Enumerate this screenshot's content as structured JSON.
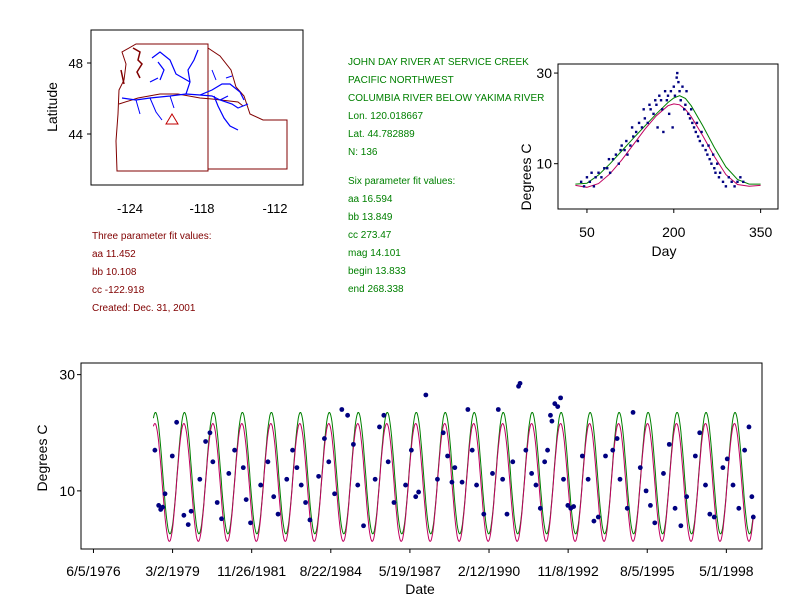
{
  "colors": {
    "axis": "#000000",
    "map_outline": "#800000",
    "rivers": "#0000ff",
    "points": "#000080",
    "fit_six": "#008000",
    "fit_three": "#c00060",
    "station_marker": "#c00000"
  },
  "map": {
    "ylabel": "Latitude",
    "yticks": [
      "48",
      "44"
    ],
    "xticks": [
      "-124",
      "-118",
      "-112"
    ],
    "station_marker_icon": "triangle-icon"
  },
  "station": {
    "name": "JOHN DAY RIVER AT SERVICE CREEK",
    "region": "PACIFIC NORTHWEST",
    "basin": "COLUMBIA RIVER BELOW YAKIMA RIVER",
    "lon": "Lon. 120.018667",
    "lat": "Lat. 44.782889",
    "n": "N: 136"
  },
  "six_fit": {
    "title": "Six parameter fit values:",
    "aa": "aa 16.594",
    "bb": "bb 13.849",
    "cc": "cc 273.47",
    "mag": "mag 14.101",
    "begin": "begin 13.833",
    "end": "end 268.338"
  },
  "three_fit": {
    "title": "Three parameter fit values:",
    "aa": "aa 11.452",
    "bb": "bb 10.108",
    "cc": "cc -122.918",
    "created": "Created:   Dec. 31, 2001"
  },
  "chart_data": [
    {
      "type": "scatter",
      "xlabel": "Day",
      "ylabel": "Degrees C",
      "xlim": [
        0,
        380
      ],
      "ylim": [
        0,
        32
      ],
      "xticks": [
        50,
        200,
        350
      ],
      "yticks": [
        10,
        30
      ],
      "series": [
        {
          "kind": "points",
          "points": [
            [
              40,
              6
            ],
            [
              45,
              5
            ],
            [
              50,
              7
            ],
            [
              55,
              6
            ],
            [
              58,
              8
            ],
            [
              62,
              5
            ],
            [
              65,
              7
            ],
            [
              70,
              8
            ],
            [
              75,
              7
            ],
            [
              80,
              9
            ],
            [
              85,
              9
            ],
            [
              88,
              11
            ],
            [
              90,
              8
            ],
            [
              95,
              11
            ],
            [
              100,
              12
            ],
            [
              105,
              10
            ],
            [
              108,
              13
            ],
            [
              110,
              14
            ],
            [
              115,
              13
            ],
            [
              118,
              15
            ],
            [
              120,
              12
            ],
            [
              125,
              14
            ],
            [
              128,
              18
            ],
            [
              130,
              16
            ],
            [
              135,
              17
            ],
            [
              138,
              15
            ],
            [
              140,
              19
            ],
            [
              145,
              18
            ],
            [
              148,
              22
            ],
            [
              150,
              20
            ],
            [
              155,
              19
            ],
            [
              158,
              23
            ],
            [
              160,
              22
            ],
            [
              165,
              21
            ],
            [
              168,
              24
            ],
            [
              170,
              23
            ],
            [
              172,
              18
            ],
            [
              175,
              25
            ],
            [
              178,
              24
            ],
            [
              180,
              22
            ],
            [
              182,
              17
            ],
            [
              185,
              26
            ],
            [
              188,
              24
            ],
            [
              190,
              25
            ],
            [
              192,
              21
            ],
            [
              195,
              26
            ],
            [
              198,
              18
            ],
            [
              200,
              27
            ],
            [
              202,
              25
            ],
            [
              205,
              29
            ],
            [
              206,
              30
            ],
            [
              208,
              28
            ],
            [
              210,
              26
            ],
            [
              212,
              24
            ],
            [
              215,
              27
            ],
            [
              218,
              22
            ],
            [
              220,
              23
            ],
            [
              222,
              26
            ],
            [
              225,
              21
            ],
            [
              228,
              20
            ],
            [
              230,
              22
            ],
            [
              232,
              19
            ],
            [
              235,
              18
            ],
            [
              238,
              17
            ],
            [
              240,
              19
            ],
            [
              242,
              16
            ],
            [
              245,
              15
            ],
            [
              248,
              17
            ],
            [
              250,
              14
            ],
            [
              255,
              13
            ],
            [
              258,
              12
            ],
            [
              260,
              14
            ],
            [
              262,
              11
            ],
            [
              265,
              10
            ],
            [
              268,
              12
            ],
            [
              270,
              9
            ],
            [
              272,
              8
            ],
            [
              275,
              10
            ],
            [
              278,
              7
            ],
            [
              280,
              8
            ],
            [
              285,
              6
            ],
            [
              290,
              5
            ],
            [
              295,
              7
            ],
            [
              300,
              6
            ],
            [
              305,
              5
            ],
            [
              310,
              6
            ],
            [
              315,
              7
            ],
            [
              320,
              6
            ]
          ]
        },
        {
          "kind": "fit",
          "name": "",
          "x": [
            30,
            50,
            70,
            90,
            110,
            130,
            150,
            170,
            190,
            200,
            210,
            220,
            230,
            250,
            270,
            290,
            310,
            330,
            350
          ],
          "values": [
            5.5,
            5.7,
            7.5,
            10.0,
            12.8,
            15.6,
            18.3,
            21.0,
            23.5,
            24.5,
            25.0,
            24.4,
            22.8,
            18.4,
            13.6,
            9.3,
            6.5,
            5.5,
            5.5
          ]
        },
        {
          "kind": "fit",
          "name": "",
          "x": [
            30,
            50,
            70,
            90,
            110,
            130,
            150,
            170,
            190,
            200,
            210,
            220,
            230,
            250,
            270,
            290,
            310,
            330,
            350
          ],
          "values": [
            5.2,
            4.8,
            5.6,
            7.8,
            10.8,
            14.2,
            17.6,
            20.6,
            22.8,
            23.2,
            23.0,
            22.0,
            20.4,
            16.2,
            11.6,
            7.6,
            5.4,
            5.0,
            5.2
          ]
        }
      ]
    },
    {
      "type": "line",
      "xlabel": "Date",
      "ylabel": "Degrees C",
      "ylim": [
        0,
        32
      ],
      "yticks": [
        10,
        30
      ],
      "xticks": [
        "6/5/1976",
        "3/2/1979",
        "11/26/1981",
        "8/22/1984",
        "5/19/1987",
        "2/12/1990",
        "11/8/1992",
        "8/5/1995",
        "5/1/1998"
      ],
      "xlim_years": [
        1976.0,
        1999.5
      ],
      "start_year": 1978.5,
      "end_year": 1999.2,
      "six_param_range": [
        2.6,
        23.5
      ],
      "three_param_range": [
        1.3,
        21.6
      ],
      "points": [
        [
          1978.55,
          17
        ],
        [
          1978.68,
          7.5
        ],
        [
          1978.75,
          6.8
        ],
        [
          1978.82,
          7.2
        ],
        [
          1978.9,
          9.5
        ],
        [
          1979.15,
          16
        ],
        [
          1979.3,
          21.8
        ],
        [
          1979.55,
          5.8
        ],
        [
          1979.7,
          4.2
        ],
        [
          1979.8,
          6.5
        ],
        [
          1980.1,
          12
        ],
        [
          1980.3,
          18.5
        ],
        [
          1980.45,
          20
        ],
        [
          1980.55,
          15
        ],
        [
          1980.7,
          8
        ],
        [
          1980.85,
          5.2
        ],
        [
          1981.1,
          13
        ],
        [
          1981.3,
          17
        ],
        [
          1981.6,
          14
        ],
        [
          1981.7,
          8.5
        ],
        [
          1981.85,
          4.5
        ],
        [
          1982.2,
          11
        ],
        [
          1982.45,
          15
        ],
        [
          1982.65,
          9
        ],
        [
          1982.8,
          6
        ],
        [
          1983.1,
          12
        ],
        [
          1983.3,
          17
        ],
        [
          1983.45,
          14
        ],
        [
          1983.6,
          11
        ],
        [
          1983.75,
          8
        ],
        [
          1983.9,
          5
        ],
        [
          1984.2,
          12.5
        ],
        [
          1984.4,
          19
        ],
        [
          1984.55,
          15
        ],
        [
          1984.75,
          9.5
        ],
        [
          1985.0,
          24
        ],
        [
          1985.2,
          23
        ],
        [
          1985.4,
          18
        ],
        [
          1985.55,
          11
        ],
        [
          1985.75,
          4
        ],
        [
          1986.15,
          12
        ],
        [
          1986.3,
          21
        ],
        [
          1986.45,
          23
        ],
        [
          1986.6,
          15
        ],
        [
          1986.8,
          8
        ],
        [
          1987.2,
          11
        ],
        [
          1987.4,
          17
        ],
        [
          1987.55,
          9
        ],
        [
          1987.65,
          9.8
        ],
        [
          1987.9,
          26.5
        ],
        [
          1988.3,
          12
        ],
        [
          1988.5,
          20
        ],
        [
          1988.65,
          16
        ],
        [
          1988.8,
          11.5
        ],
        [
          1988.9,
          14
        ],
        [
          1989.15,
          11.5
        ],
        [
          1989.35,
          24
        ],
        [
          1989.5,
          17
        ],
        [
          1989.65,
          11
        ],
        [
          1989.9,
          6
        ],
        [
          1990.2,
          13
        ],
        [
          1990.4,
          24
        ],
        [
          1990.55,
          12
        ],
        [
          1990.7,
          6
        ],
        [
          1990.9,
          15
        ],
        [
          1991.1,
          28
        ],
        [
          1991.15,
          28.5
        ],
        [
          1991.35,
          17
        ],
        [
          1991.55,
          13
        ],
        [
          1991.7,
          11
        ],
        [
          1991.85,
          7
        ],
        [
          1992.0,
          15
        ],
        [
          1992.1,
          17
        ],
        [
          1992.2,
          23
        ],
        [
          1992.25,
          22
        ],
        [
          1992.35,
          25
        ],
        [
          1992.45,
          24.5
        ],
        [
          1992.55,
          26
        ],
        [
          1992.65,
          12
        ],
        [
          1992.8,
          7.5
        ],
        [
          1992.9,
          7
        ],
        [
          1993.0,
          7.3
        ],
        [
          1993.3,
          16
        ],
        [
          1993.5,
          12
        ],
        [
          1993.7,
          4.8
        ],
        [
          1993.85,
          5.5
        ],
        [
          1994.1,
          16
        ],
        [
          1994.35,
          17
        ],
        [
          1994.5,
          19
        ],
        [
          1994.6,
          12
        ],
        [
          1994.85,
          7
        ],
        [
          1995.05,
          23.5
        ],
        [
          1995.3,
          14
        ],
        [
          1995.5,
          10
        ],
        [
          1995.65,
          7.5
        ],
        [
          1995.8,
          4.5
        ],
        [
          1996.1,
          13
        ],
        [
          1996.3,
          18
        ],
        [
          1996.5,
          7
        ],
        [
          1996.7,
          4
        ],
        [
          1996.9,
          9
        ],
        [
          1997.2,
          16
        ],
        [
          1997.35,
          20
        ],
        [
          1997.55,
          11
        ],
        [
          1997.7,
          6
        ],
        [
          1997.85,
          5.5
        ],
        [
          1998.15,
          14
        ],
        [
          1998.3,
          15.5
        ],
        [
          1998.5,
          11
        ],
        [
          1998.7,
          7
        ],
        [
          1998.9,
          17
        ],
        [
          1999.05,
          21
        ],
        [
          1999.15,
          9
        ],
        [
          1999.2,
          5.5
        ]
      ]
    }
  ]
}
